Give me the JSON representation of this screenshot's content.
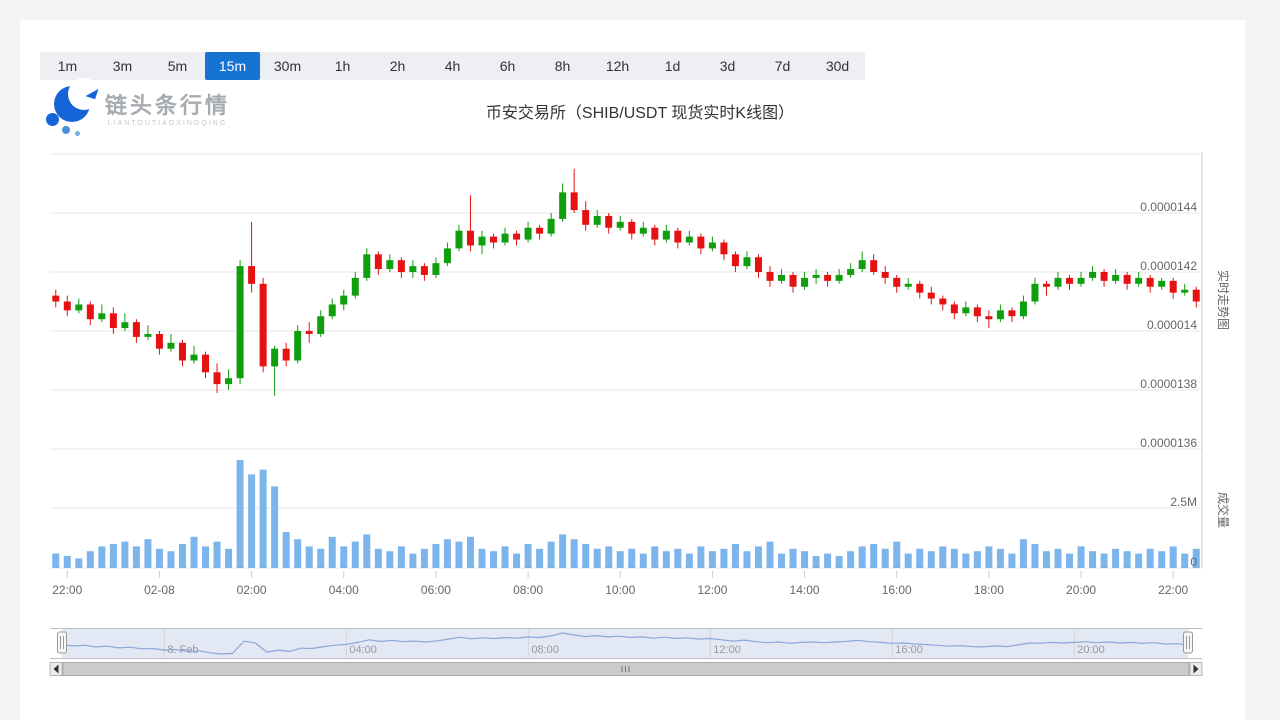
{
  "header": {
    "title": "币安交易所（SHIB/USDT 现货实时K线图）"
  },
  "logo": {
    "name": "链头条行情",
    "subtitle": "LIANTOUTIAOXINGQING"
  },
  "timeframes": {
    "selected": "15m",
    "options": [
      "1m",
      "3m",
      "5m",
      "15m",
      "30m",
      "1h",
      "2h",
      "4h",
      "6h",
      "8h",
      "12h",
      "1d",
      "3d",
      "7d",
      "30d"
    ]
  },
  "chart_data": {
    "type": "candlestick",
    "exchange": "币安交易所",
    "symbol": "SHIB/USDT",
    "interval": "15m",
    "title": "币安交易所（SHIB/USDT 现货实时K线图）",
    "price_unit": "values are price × 1e-7 USDT",
    "y_axis": {
      "title": "实时走势图",
      "tick_labels": [
        "0.0000144",
        "0.0000142",
        "0.000014",
        "0.0000138",
        "0.0000136"
      ],
      "tick_values": [
        144,
        142,
        140,
        138,
        136
      ],
      "grid_values": [
        146,
        144,
        142,
        140,
        138,
        136
      ]
    },
    "volume_axis": {
      "title": "成交量",
      "tick_labels": [
        "2.5M",
        "0"
      ],
      "tick_values": [
        2.5,
        0
      ],
      "unit": "M"
    },
    "x_axis": {
      "ticks": [
        {
          "label": "22:00",
          "index": 1
        },
        {
          "label": "02-08",
          "index": 9
        },
        {
          "label": "02:00",
          "index": 17
        },
        {
          "label": "04:00",
          "index": 25
        },
        {
          "label": "06:00",
          "index": 33
        },
        {
          "label": "08:00",
          "index": 41
        },
        {
          "label": "10:00",
          "index": 49
        },
        {
          "label": "12:00",
          "index": 57
        },
        {
          "label": "14:00",
          "index": 65
        },
        {
          "label": "16:00",
          "index": 73
        },
        {
          "label": "18:00",
          "index": 81
        },
        {
          "label": "20:00",
          "index": 89
        },
        {
          "label": "22:00",
          "index": 97
        }
      ]
    },
    "colors": {
      "up": "#0e9e0e",
      "down": "#e61212",
      "volume": "#7cb5ec",
      "axis_line": "#c3cede",
      "grid": "#e7e7e7",
      "nav_line": "#8ba8d8",
      "nav_mask": "rgba(102,133,194,0.18)",
      "selected_tab": "#1573d1"
    },
    "candles": [
      [
        141.2,
        141.4,
        140.8,
        141.0,
        0.6
      ],
      [
        141.0,
        141.2,
        140.5,
        140.7,
        0.5
      ],
      [
        140.7,
        141.1,
        140.6,
        140.9,
        0.4
      ],
      [
        140.9,
        141.0,
        140.2,
        140.4,
        0.7
      ],
      [
        140.4,
        140.9,
        140.3,
        140.6,
        0.9
      ],
      [
        140.6,
        140.8,
        139.9,
        140.1,
        1.0
      ],
      [
        140.1,
        140.6,
        140.0,
        140.3,
        1.1
      ],
      [
        140.3,
        140.4,
        139.6,
        139.8,
        0.9
      ],
      [
        139.8,
        140.2,
        139.7,
        139.9,
        1.2
      ],
      [
        139.9,
        140.0,
        139.2,
        139.4,
        0.8
      ],
      [
        139.4,
        139.9,
        139.3,
        139.6,
        0.7
      ],
      [
        139.6,
        139.7,
        138.8,
        139.0,
        1.0
      ],
      [
        139.0,
        139.5,
        138.9,
        139.2,
        1.3
      ],
      [
        139.2,
        139.3,
        138.4,
        138.6,
        0.9
      ],
      [
        138.6,
        138.9,
        137.9,
        138.2,
        1.1
      ],
      [
        138.2,
        138.7,
        138.0,
        138.4,
        0.8
      ],
      [
        138.4,
        142.4,
        138.2,
        142.2,
        4.5
      ],
      [
        142.2,
        143.7,
        141.3,
        141.6,
        3.9
      ],
      [
        141.6,
        141.8,
        138.6,
        138.8,
        4.1
      ],
      [
        138.8,
        139.5,
        137.8,
        139.4,
        3.4
      ],
      [
        139.4,
        139.6,
        138.8,
        139.0,
        1.5
      ],
      [
        139.0,
        140.2,
        138.9,
        140.0,
        1.2
      ],
      [
        140.0,
        140.3,
        139.6,
        139.9,
        0.9
      ],
      [
        139.9,
        140.7,
        139.8,
        140.5,
        0.8
      ],
      [
        140.5,
        141.1,
        140.4,
        140.9,
        1.3
      ],
      [
        140.9,
        141.4,
        140.7,
        141.2,
        0.9
      ],
      [
        141.2,
        142.0,
        141.1,
        141.8,
        1.1
      ],
      [
        141.8,
        142.8,
        141.7,
        142.6,
        1.4
      ],
      [
        142.6,
        142.7,
        141.9,
        142.1,
        0.8
      ],
      [
        142.1,
        142.6,
        142.0,
        142.4,
        0.7
      ],
      [
        142.4,
        142.5,
        141.8,
        142.0,
        0.9
      ],
      [
        142.0,
        142.4,
        141.8,
        142.2,
        0.6
      ],
      [
        142.2,
        142.3,
        141.7,
        141.9,
        0.8
      ],
      [
        141.9,
        142.5,
        141.8,
        142.3,
        1.0
      ],
      [
        142.3,
        143.0,
        142.2,
        142.8,
        1.2
      ],
      [
        142.8,
        143.6,
        142.7,
        143.4,
        1.1
      ],
      [
        143.4,
        144.6,
        142.7,
        142.9,
        1.3
      ],
      [
        142.9,
        143.4,
        142.6,
        143.2,
        0.8
      ],
      [
        143.2,
        143.3,
        142.8,
        143.0,
        0.7
      ],
      [
        143.0,
        143.5,
        142.9,
        143.3,
        0.9
      ],
      [
        143.3,
        143.4,
        142.9,
        143.1,
        0.6
      ],
      [
        143.1,
        143.7,
        143.0,
        143.5,
        1.0
      ],
      [
        143.5,
        143.6,
        143.1,
        143.3,
        0.8
      ],
      [
        143.3,
        144.0,
        143.2,
        143.8,
        1.1
      ],
      [
        143.8,
        145.0,
        143.7,
        144.7,
        1.4
      ],
      [
        144.7,
        145.5,
        144.0,
        144.1,
        1.2
      ],
      [
        144.1,
        144.4,
        143.4,
        143.6,
        1.0
      ],
      [
        143.6,
        144.1,
        143.5,
        143.9,
        0.8
      ],
      [
        143.9,
        144.0,
        143.3,
        143.5,
        0.9
      ],
      [
        143.5,
        143.9,
        143.4,
        143.7,
        0.7
      ],
      [
        143.7,
        143.8,
        143.1,
        143.3,
        0.8
      ],
      [
        143.3,
        143.7,
        143.2,
        143.5,
        0.6
      ],
      [
        143.5,
        143.6,
        142.9,
        143.1,
        0.9
      ],
      [
        143.1,
        143.6,
        143.0,
        143.4,
        0.7
      ],
      [
        143.4,
        143.5,
        142.8,
        143.0,
        0.8
      ],
      [
        143.0,
        143.4,
        142.9,
        143.2,
        0.6
      ],
      [
        143.2,
        143.3,
        142.6,
        142.8,
        0.9
      ],
      [
        142.8,
        143.2,
        142.7,
        143.0,
        0.7
      ],
      [
        143.0,
        143.1,
        142.4,
        142.6,
        0.8
      ],
      [
        142.6,
        142.7,
        142.0,
        142.2,
        1.0
      ],
      [
        142.2,
        142.7,
        142.1,
        142.5,
        0.7
      ],
      [
        142.5,
        142.6,
        141.8,
        142.0,
        0.9
      ],
      [
        142.0,
        142.2,
        141.5,
        141.7,
        1.1
      ],
      [
        141.7,
        142.1,
        141.6,
        141.9,
        0.6
      ],
      [
        141.9,
        142.0,
        141.3,
        141.5,
        0.8
      ],
      [
        141.5,
        142.0,
        141.4,
        141.8,
        0.7
      ],
      [
        141.8,
        142.1,
        141.6,
        141.9,
        0.5
      ],
      [
        141.9,
        142.0,
        141.5,
        141.7,
        0.6
      ],
      [
        141.7,
        142.1,
        141.6,
        141.9,
        0.5
      ],
      [
        141.9,
        142.3,
        141.8,
        142.1,
        0.7
      ],
      [
        142.1,
        142.7,
        142.0,
        142.4,
        0.9
      ],
      [
        142.4,
        142.6,
        141.9,
        142.0,
        1.0
      ],
      [
        142.0,
        142.2,
        141.6,
        141.8,
        0.8
      ],
      [
        141.8,
        141.9,
        141.3,
        141.5,
        1.1
      ],
      [
        141.5,
        141.8,
        141.4,
        141.6,
        0.6
      ],
      [
        141.6,
        141.7,
        141.1,
        141.3,
        0.8
      ],
      [
        141.3,
        141.5,
        140.9,
        141.1,
        0.7
      ],
      [
        141.1,
        141.2,
        140.7,
        140.9,
        0.9
      ],
      [
        140.9,
        141.0,
        140.4,
        140.6,
        0.8
      ],
      [
        140.6,
        141.0,
        140.5,
        140.8,
        0.6
      ],
      [
        140.8,
        140.9,
        140.3,
        140.5,
        0.7
      ],
      [
        140.5,
        140.7,
        140.1,
        140.4,
        0.9
      ],
      [
        140.4,
        140.9,
        140.3,
        140.7,
        0.8
      ],
      [
        140.7,
        140.8,
        140.3,
        140.5,
        0.6
      ],
      [
        140.5,
        141.2,
        140.4,
        141.0,
        1.2
      ],
      [
        141.0,
        141.8,
        140.9,
        141.6,
        1.0
      ],
      [
        141.6,
        141.7,
        141.2,
        141.5,
        0.7
      ],
      [
        141.5,
        142.0,
        141.4,
        141.8,
        0.8
      ],
      [
        141.8,
        141.9,
        141.4,
        141.6,
        0.6
      ],
      [
        141.6,
        142.0,
        141.5,
        141.8,
        0.9
      ],
      [
        141.8,
        142.2,
        141.7,
        142.0,
        0.7
      ],
      [
        142.0,
        142.1,
        141.5,
        141.7,
        0.6
      ],
      [
        141.7,
        142.1,
        141.6,
        141.9,
        0.8
      ],
      [
        141.9,
        142.0,
        141.4,
        141.6,
        0.7
      ],
      [
        141.6,
        142.0,
        141.5,
        141.8,
        0.6
      ],
      [
        141.8,
        141.9,
        141.3,
        141.5,
        0.8
      ],
      [
        141.5,
        141.8,
        141.4,
        141.7,
        0.7
      ],
      [
        141.7,
        141.8,
        141.1,
        141.3,
        0.9
      ],
      [
        141.3,
        141.6,
        141.2,
        141.4,
        0.6
      ],
      [
        141.4,
        141.5,
        140.8,
        141.0,
        0.8
      ]
    ]
  },
  "navigator": {
    "ticks": [
      {
        "label": "8. Feb",
        "index": 9
      },
      {
        "label": "04:00",
        "index": 25
      },
      {
        "label": "08:00",
        "index": 41
      },
      {
        "label": "12:00",
        "index": 57
      },
      {
        "label": "16:00",
        "index": 73
      },
      {
        "label": "20:00",
        "index": 89
      }
    ]
  }
}
